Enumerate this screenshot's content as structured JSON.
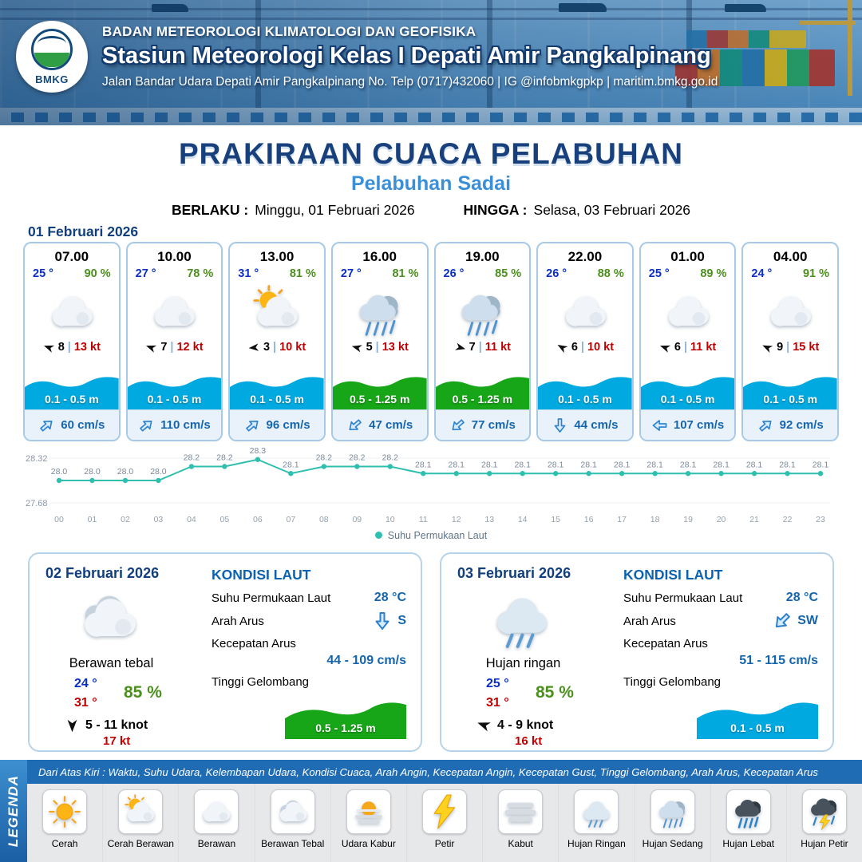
{
  "ui": {
    "pipe": "|"
  },
  "colors": {
    "wave_blue": "#00a9e0",
    "wave_green": "#17a617",
    "accent_blue": "#1565ae",
    "line_teal": "#2fbfae"
  },
  "header": {
    "agency": "BADAN METEOROLOGI KLIMATOLOGI DAN GEOFISIKA",
    "station": "Stasiun Meteorologi Kelas I Depati Amir Pangkalpinang",
    "address": "Jalan Bandar Udara Depati Amir Pangkalpinang No. Telp (0717)432060 | IG @infobmkgpkp | maritim.bmkg.go.id",
    "logo_text": "BMKG"
  },
  "title": {
    "main": "PRAKIRAAN CUACA PELABUHAN",
    "port": "Pelabuhan Sadai",
    "berlaku_label": "BERLAKU :",
    "berlaku_value": "Minggu, 01 Februari 2026",
    "hingga_label": "HINGGA :",
    "hingga_value": "Selasa, 03 Februari 2026"
  },
  "day1": {
    "date": "01 Februari 2026",
    "cards": [
      {
        "time": "07.00",
        "temp": "25 °",
        "rh": "90 %",
        "icon": "berawan",
        "wind_deg": 200,
        "wind_speed": "8",
        "gust": "13 kt",
        "wave": "0.1 - 0.5 m",
        "wave_color": "wave_blue",
        "current_deg": 320,
        "current": "60 cm/s"
      },
      {
        "time": "10.00",
        "temp": "27 °",
        "rh": "78 %",
        "icon": "berawan",
        "wind_deg": 200,
        "wind_speed": "7",
        "gust": "12 kt",
        "wave": "0.1 - 0.5 m",
        "wave_color": "wave_blue",
        "current_deg": 320,
        "current": "110 cm/s"
      },
      {
        "time": "13.00",
        "temp": "31 °",
        "rh": "81 %",
        "icon": "cerah-berawan",
        "wind_deg": 175,
        "wind_speed": "3",
        "gust": "10 kt",
        "wave": "0.1 - 0.5 m",
        "wave_color": "wave_blue",
        "current_deg": 320,
        "current": "96 cm/s"
      },
      {
        "time": "16.00",
        "temp": "27 °",
        "rh": "81 %",
        "icon": "hujan-sedang",
        "wind_deg": 195,
        "wind_speed": "5",
        "gust": "13 kt",
        "wave": "0.5 - 1.25 m",
        "wave_color": "wave_green",
        "current_deg": 140,
        "current": "47 cm/s"
      },
      {
        "time": "19.00",
        "temp": "26 °",
        "rh": "85 %",
        "icon": "hujan-sedang",
        "wind_deg": 15,
        "wind_speed": "7",
        "gust": "11 kt",
        "wave": "0.5 - 1.25 m",
        "wave_color": "wave_green",
        "current_deg": 140,
        "current": "77 cm/s"
      },
      {
        "time": "22.00",
        "temp": "26 °",
        "rh": "88 %",
        "icon": "berawan",
        "wind_deg": 210,
        "wind_speed": "6",
        "gust": "10 kt",
        "wave": "0.1 - 0.5 m",
        "wave_color": "wave_blue",
        "current_deg": 90,
        "current": "44 cm/s"
      },
      {
        "time": "01.00",
        "temp": "25 °",
        "rh": "89 %",
        "icon": "berawan",
        "wind_deg": 200,
        "wind_speed": "6",
        "gust": "11 kt",
        "wave": "0.1 - 0.5 m",
        "wave_color": "wave_blue",
        "current_deg": 180,
        "current": "107 cm/s"
      },
      {
        "time": "04.00",
        "temp": "24 °",
        "rh": "91 %",
        "icon": "berawan",
        "wind_deg": 205,
        "wind_speed": "9",
        "gust": "15 kt",
        "wave": "0.1 - 0.5 m",
        "wave_color": "wave_blue",
        "current_deg": 320,
        "current": "92 cm/s"
      }
    ]
  },
  "chart_data": {
    "type": "line",
    "title": "",
    "series_name": "Suhu Permukaan Laut",
    "x": [
      "00",
      "01",
      "02",
      "03",
      "04",
      "05",
      "06",
      "07",
      "08",
      "09",
      "10",
      "11",
      "12",
      "13",
      "14",
      "15",
      "16",
      "17",
      "18",
      "19",
      "20",
      "21",
      "22",
      "23"
    ],
    "values": [
      28.0,
      28.0,
      28.0,
      28.0,
      28.2,
      28.2,
      28.3,
      28.1,
      28.2,
      28.2,
      28.2,
      28.1,
      28.1,
      28.1,
      28.1,
      28.1,
      28.1,
      28.1,
      28.1,
      28.1,
      28.1,
      28.1,
      28.1,
      28.1
    ],
    "ylim": [
      27.68,
      28.32
    ],
    "line_color": "#2fbfae",
    "legend_position": "bottom",
    "grid": false
  },
  "day2": {
    "date": "02 Februari 2026",
    "icon": "berawan-tebal",
    "condition": "Berawan tebal",
    "temp_min": "24 °",
    "temp_max": "31 °",
    "rh": "85 %",
    "wind_deg": 90,
    "wind": "5 - 11 knot",
    "gust": "17 kt",
    "sea": {
      "title": "KONDISI LAUT",
      "sst_label": "Suhu Permukaan Laut",
      "sst": "28 °C",
      "dir_label": "Arah Arus",
      "dir": "S",
      "dir_deg": 90,
      "speed_label": "Kecepatan Arus",
      "speed": "44 - 109 cm/s",
      "wave_label": "Tinggi Gelombang",
      "wave": "0.5 - 1.25 m",
      "wave_color": "wave_green"
    }
  },
  "day3": {
    "date": "03 Februari 2026",
    "icon": "hujan-ringan",
    "condition": "Hujan ringan",
    "temp_min": "25 °",
    "temp_max": "31 °",
    "rh": "85 %",
    "wind_deg": 200,
    "wind": "4 - 9 knot",
    "gust": "16 kt",
    "sea": {
      "title": "KONDISI LAUT",
      "sst_label": "Suhu Permukaan Laut",
      "sst": "28 °C",
      "dir_label": "Arah Arus",
      "dir": "SW",
      "dir_deg": 135,
      "speed_label": "Kecepatan Arus",
      "speed": "51 - 115 cm/s",
      "wave_label": "Tinggi Gelombang",
      "wave": "0.1 - 0.5 m",
      "wave_color": "wave_blue"
    }
  },
  "legend": {
    "banner": "LEGENDA",
    "note": "Dari Atas Kiri : Waktu, Suhu Udara, Kelembapan Udara, Kondisi Cuaca, Arah Angin, Kecepatan Angin, Kecepatan Gust, Tinggi Gelombang, Arah Arus, Kecepatan Arus",
    "items": [
      {
        "label": "Cerah",
        "icon": "cerah"
      },
      {
        "label": "Cerah Berawan",
        "icon": "cerah-berawan"
      },
      {
        "label": "Berawan",
        "icon": "berawan"
      },
      {
        "label": "Berawan Tebal",
        "icon": "berawan-tebal"
      },
      {
        "label": "Udara Kabur",
        "icon": "udara-kabur"
      },
      {
        "label": "Petir",
        "icon": "petir"
      },
      {
        "label": "Kabut",
        "icon": "kabut"
      },
      {
        "label": "Hujan Ringan",
        "icon": "hujan-ringan"
      },
      {
        "label": "Hujan Sedang",
        "icon": "hujan-sedang"
      },
      {
        "label": "Hujan Lebat",
        "icon": "hujan-lebat"
      },
      {
        "label": "Hujan Petir",
        "icon": "hujan-petir"
      }
    ]
  }
}
